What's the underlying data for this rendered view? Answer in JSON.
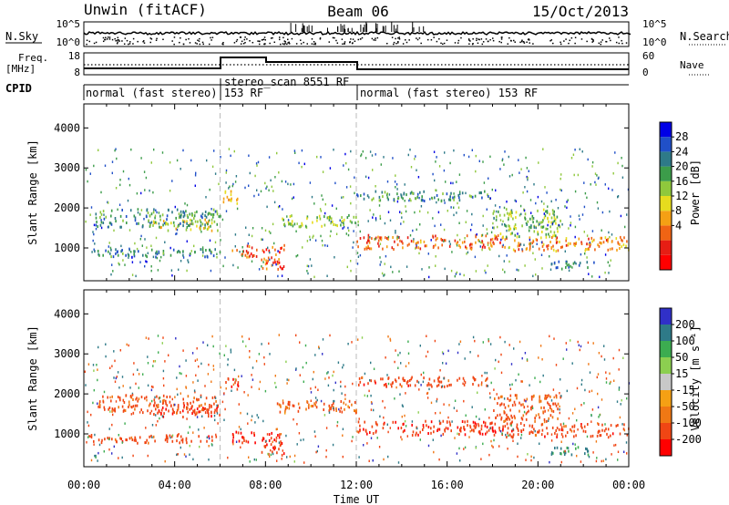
{
  "header": {
    "station": "Unwin (fitACF)",
    "beam": "Beam 06",
    "date": "15/Oct/2013"
  },
  "strip_labels": {
    "nsky": "N.Sky",
    "nsearch": "N.Search",
    "freq_top": "Freq.",
    "freq_unit": "[MHz]",
    "nave": "Nave",
    "cpid": "CPID",
    "noise_ticks_left": [
      "10^5",
      "10^0"
    ],
    "noise_ticks_right": [
      "10^5",
      "10^0"
    ],
    "freq_ticks": [
      "18",
      "8"
    ],
    "nave_ticks": [
      "60",
      "0"
    ]
  },
  "cpid_segments": [
    {
      "label": "normal (fast stereo) 153 RF",
      "start_hour": 0,
      "end_hour": 6
    },
    {
      "label": "stereo_scan 8551 RF",
      "start_hour": 6,
      "end_hour": 12
    },
    {
      "label": "normal (fast stereo) 153 RF",
      "start_hour": 12,
      "end_hour": 24
    }
  ],
  "chart_data": [
    {
      "type": "heatmap",
      "parameter": "power",
      "x_range_hours": [
        0,
        24
      ],
      "xticks": [
        "00:00",
        "04:00",
        "08:00",
        "12:00",
        "16:00",
        "20:00",
        "00:00"
      ],
      "xlabel": "Time UT",
      "ylabel": "Slant Range [km]",
      "ylim": [
        180,
        4600
      ],
      "yticks": [
        1000,
        2000,
        3000,
        4000
      ],
      "colorbar": {
        "label": "Power [dB]",
        "ticks": [
          "28",
          "24",
          "20",
          "16",
          "12",
          "8",
          "4"
        ],
        "range": [
          0,
          32
        ],
        "colors": [
          "#0000e6",
          "#2050c8",
          "#2e7a88",
          "#3c9c4a",
          "#8fc83c",
          "#e6dc1e",
          "#f5a014",
          "#f06414",
          "#e61e14",
          "#ff0000"
        ]
      },
      "echo_regions": [
        {
          "t0": 0.3,
          "t1": 6.0,
          "r0": 800,
          "r1": 1000,
          "value": 8
        },
        {
          "t0": 3.0,
          "t1": 6.0,
          "r0": 1450,
          "r1": 1750,
          "value": 18
        },
        {
          "t0": 0.5,
          "t1": 6.0,
          "r0": 1550,
          "r1": 2000,
          "value": 10
        },
        {
          "t0": 6.1,
          "t1": 6.8,
          "r0": 2100,
          "r1": 2450,
          "value": 20
        },
        {
          "t0": 6.5,
          "t1": 7.6,
          "r0": 800,
          "r1": 1100,
          "value": 24
        },
        {
          "t0": 7.8,
          "t1": 8.8,
          "r0": 500,
          "r1": 1100,
          "value": 26
        },
        {
          "t0": 8.5,
          "t1": 12.0,
          "r0": 1550,
          "r1": 1850,
          "value": 14
        },
        {
          "t0": 12.0,
          "t1": 18.5,
          "r0": 1000,
          "r1": 1350,
          "value": 24
        },
        {
          "t0": 18.5,
          "t1": 24.0,
          "r0": 950,
          "r1": 1300,
          "value": 22
        },
        {
          "t0": 12.0,
          "t1": 18.0,
          "r0": 2200,
          "r1": 2450,
          "value": 10
        },
        {
          "t0": 18.0,
          "t1": 21.0,
          "r0": 1300,
          "r1": 2000,
          "value": 14
        },
        {
          "t0": 20.5,
          "t1": 22.5,
          "r0": 500,
          "r1": 700,
          "value": 8
        }
      ]
    },
    {
      "type": "heatmap",
      "parameter": "velocity",
      "x_range_hours": [
        0,
        24
      ],
      "xticks": [
        "00:00",
        "04:00",
        "08:00",
        "12:00",
        "16:00",
        "20:00",
        "00:00"
      ],
      "xlabel": "Time UT",
      "ylabel": "Slant Range [km]",
      "ylim": [
        180,
        4600
      ],
      "yticks": [
        1000,
        2000,
        3000,
        4000
      ],
      "colorbar": {
        "label": "Velocity [m s⁻¹]",
        "ticks": [
          "200",
          "100",
          "50",
          "15",
          "-15",
          "-50",
          "-100",
          "-200"
        ],
        "colors": [
          "#3030c8",
          "#2e7a88",
          "#3cac50",
          "#8ccf50",
          "#c8c8c8",
          "#f5a014",
          "#f07814",
          "#f04614",
          "#ff0000"
        ]
      },
      "echo_regions": [
        {
          "t0": 0.3,
          "t1": 6.0,
          "r0": 800,
          "r1": 1000,
          "value": -150
        },
        {
          "t0": 3.0,
          "t1": 6.0,
          "r0": 1450,
          "r1": 1750,
          "value": -200
        },
        {
          "t0": 0.5,
          "t1": 6.0,
          "r0": 1550,
          "r1": 2000,
          "value": -120
        },
        {
          "t0": 6.1,
          "t1": 6.8,
          "r0": 2100,
          "r1": 2450,
          "value": -200
        },
        {
          "t0": 6.5,
          "t1": 7.6,
          "r0": 800,
          "r1": 1100,
          "value": -200
        },
        {
          "t0": 7.8,
          "t1": 8.8,
          "r0": 500,
          "r1": 1100,
          "value": -200
        },
        {
          "t0": 8.5,
          "t1": 12.0,
          "r0": 1550,
          "r1": 1850,
          "value": -100
        },
        {
          "t0": 12.0,
          "t1": 18.5,
          "r0": 1000,
          "r1": 1350,
          "value": -180
        },
        {
          "t0": 18.5,
          "t1": 24.0,
          "r0": 950,
          "r1": 1300,
          "value": -150
        },
        {
          "t0": 12.0,
          "t1": 18.0,
          "r0": 2200,
          "r1": 2450,
          "value": -150
        },
        {
          "t0": 18.0,
          "t1": 21.0,
          "r0": 1300,
          "r1": 2000,
          "value": -120
        },
        {
          "t0": 20.5,
          "t1": 22.5,
          "r0": 500,
          "r1": 700,
          "value": 120
        }
      ]
    }
  ]
}
